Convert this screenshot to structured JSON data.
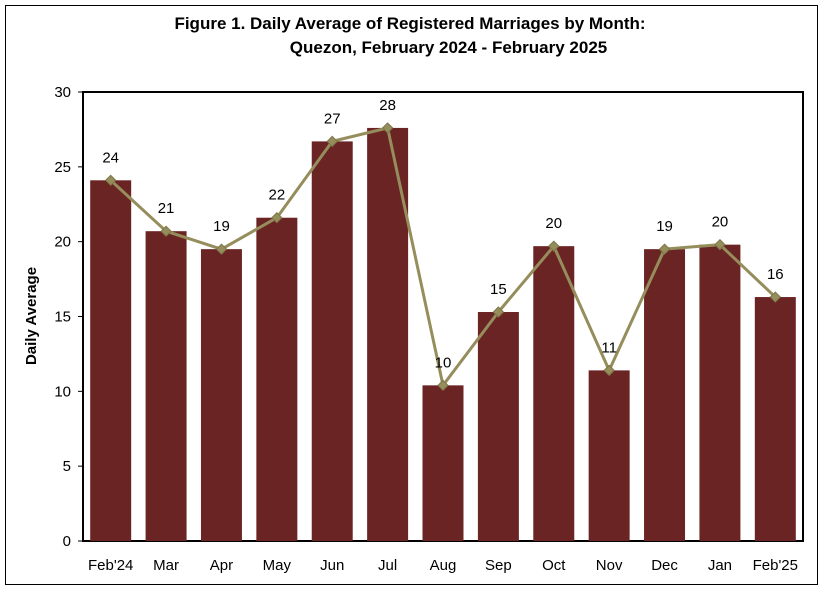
{
  "chart_data": {
    "type": "bar",
    "title_line1": "Figure 1. Daily Average of  Registered Marriages by Month:",
    "title_line2": "Quezon, February 2024 - February 2025",
    "xlabel": "",
    "ylabel": "Daily Average",
    "ylim": [
      0,
      30
    ],
    "yticks": [
      "0",
      "5",
      "10",
      "15",
      "20",
      "25",
      "30"
    ],
    "categories": [
      "Feb'24",
      "Mar",
      "Apr",
      "May",
      "Jun",
      "Jul",
      "Aug",
      "Sep",
      "Oct",
      "Nov",
      "Dec",
      "Jan",
      "Feb'25"
    ],
    "values": [
      24.1,
      20.7,
      19.5,
      21.6,
      26.7,
      27.6,
      10.4,
      15.3,
      19.7,
      11.4,
      19.5,
      19.8,
      16.3
    ],
    "data_labels": [
      "24",
      "21",
      "19",
      "22",
      "27",
      "28",
      "10",
      "15",
      "20",
      "11",
      "19",
      "20",
      "16"
    ],
    "overlay": "line",
    "grid": false,
    "colors": {
      "bar": "#6b2424",
      "line": "#958d5c",
      "marker": "#958d5c"
    }
  }
}
